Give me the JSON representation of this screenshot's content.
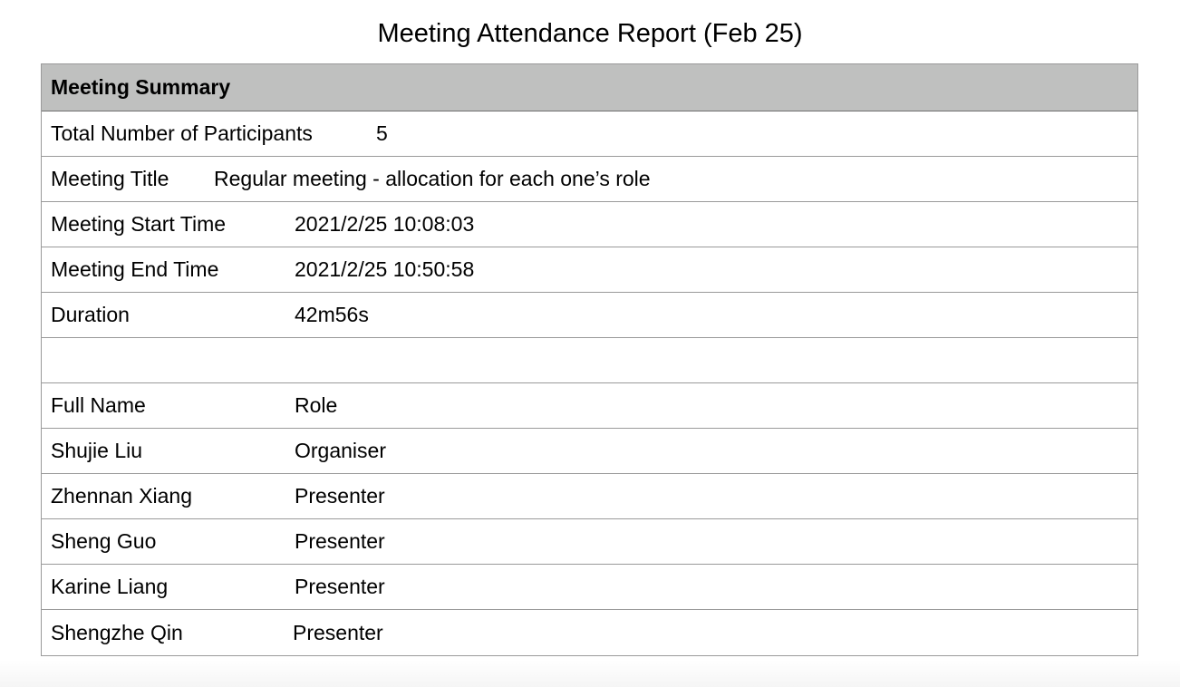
{
  "report": {
    "title": "Meeting Attendance Report (Feb 25)"
  },
  "summary": {
    "header": "Meeting Summary",
    "participants_label": "Total Number of Participants",
    "participants_value": "5",
    "meeting_title_label": "Meeting Title",
    "meeting_title_value": "Regular meeting - allocation for each one’s role",
    "start_label": "Meeting Start Time",
    "start_value": "2021/2/25 10:08:03",
    "end_label": "Meeting End Time",
    "end_value": "2021/2/25 10:50:58",
    "duration_label": "Duration",
    "duration_value": "42m56s"
  },
  "attendees": {
    "columns": [
      "Full Name",
      "Role"
    ],
    "rows": [
      {
        "name": "Shujie Liu",
        "role": "Organiser"
      },
      {
        "name": "Zhennan Xiang",
        "role": "Presenter"
      },
      {
        "name": "Sheng Guo",
        "role": "Presenter"
      },
      {
        "name": "Karine Liang",
        "role": "Presenter"
      },
      {
        "name": "Shengzhe Qin",
        "role": "Presenter"
      }
    ]
  }
}
